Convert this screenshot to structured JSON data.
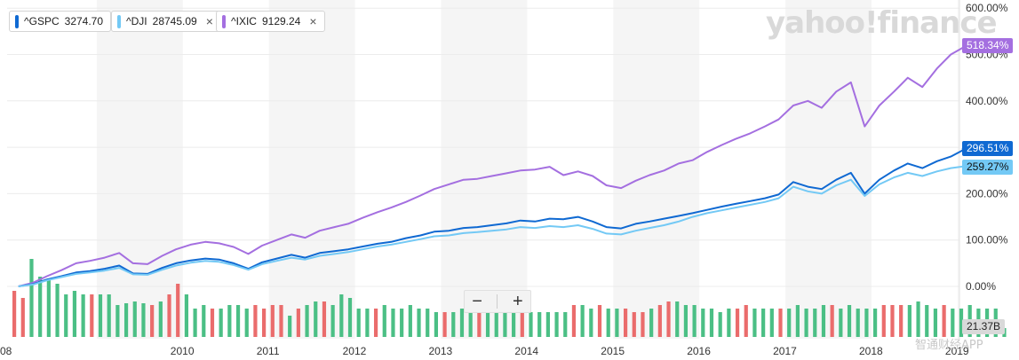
{
  "legend": [
    {
      "symbol": "^GSPC",
      "value": "3274.70",
      "color": "#0f69d2",
      "close": "×"
    },
    {
      "symbol": "^DJI",
      "value": "28745.09",
      "color": "#73c9f5",
      "close": "×"
    },
    {
      "symbol": "^IXIC",
      "value": "9129.24",
      "color": "#a46fe0",
      "close": "×"
    }
  ],
  "watermark": "yahoo!finance",
  "zoom": {
    "minus": "−",
    "plus": "+"
  },
  "end_labels": {
    "ixic": "518.34%",
    "gspc": "296.51%",
    "dji": "259.27%",
    "volume": "21.37B"
  },
  "app_watermark": "智通财经APP",
  "chart_data": {
    "type": "line",
    "y_axis_ticks": [
      "600.00%",
      "500.00%",
      "400.00%",
      "300.00%",
      "200.00%",
      "100.00%",
      "0.00%"
    ],
    "ylim": [
      -5,
      600
    ],
    "x_axis_ticks": [
      "08",
      "2010",
      "2011",
      "2012",
      "2013",
      "2014",
      "2015",
      "2016",
      "2017",
      "2018",
      "2019",
      "202"
    ],
    "grid": true,
    "series": [
      {
        "name": "^IXIC",
        "color": "#a46fe0",
        "x": [
          2009.0,
          2009.17,
          2009.33,
          2009.5,
          2009.67,
          2009.83,
          2010.0,
          2010.17,
          2010.33,
          2010.5,
          2010.67,
          2010.83,
          2011.0,
          2011.17,
          2011.33,
          2011.5,
          2011.67,
          2011.83,
          2012.0,
          2012.17,
          2012.33,
          2012.5,
          2012.67,
          2012.83,
          2013.0,
          2013.17,
          2013.33,
          2013.5,
          2013.67,
          2013.83,
          2014.0,
          2014.17,
          2014.33,
          2014.5,
          2014.67,
          2014.83,
          2015.0,
          2015.17,
          2015.33,
          2015.5,
          2015.67,
          2015.83,
          2016.0,
          2016.17,
          2016.33,
          2016.5,
          2016.67,
          2016.83,
          2017.0,
          2017.17,
          2017.33,
          2017.5,
          2017.67,
          2017.83,
          2018.0,
          2018.17,
          2018.33,
          2018.5,
          2018.67,
          2018.83,
          2019.0,
          2019.17,
          2019.33,
          2019.5,
          2019.67,
          2019.83,
          2020.0
        ],
        "values": [
          0,
          8,
          22,
          35,
          50,
          55,
          62,
          72,
          50,
          48,
          66,
          80,
          90,
          96,
          93,
          85,
          70,
          88,
          100,
          112,
          105,
          120,
          128,
          135,
          148,
          160,
          170,
          182,
          196,
          210,
          220,
          230,
          232,
          238,
          244,
          250,
          252,
          258,
          240,
          248,
          238,
          218,
          212,
          228,
          240,
          250,
          265,
          272,
          290,
          305,
          318,
          330,
          345,
          360,
          390,
          400,
          385,
          420,
          440,
          345,
          390,
          420,
          450,
          430,
          470,
          500,
          518
        ]
      },
      {
        "name": "^GSPC",
        "color": "#0f69d2",
        "x": [
          2009.0,
          2009.17,
          2009.33,
          2009.5,
          2009.67,
          2009.83,
          2010.0,
          2010.17,
          2010.33,
          2010.5,
          2010.67,
          2010.83,
          2011.0,
          2011.17,
          2011.33,
          2011.5,
          2011.67,
          2011.83,
          2012.0,
          2012.17,
          2012.33,
          2012.5,
          2012.67,
          2012.83,
          2013.0,
          2013.17,
          2013.33,
          2013.5,
          2013.67,
          2013.83,
          2014.0,
          2014.17,
          2014.33,
          2014.5,
          2014.67,
          2014.83,
          2015.0,
          2015.17,
          2015.33,
          2015.5,
          2015.67,
          2015.83,
          2016.0,
          2016.17,
          2016.33,
          2016.5,
          2016.67,
          2016.83,
          2017.0,
          2017.17,
          2017.33,
          2017.5,
          2017.67,
          2017.83,
          2018.0,
          2018.17,
          2018.33,
          2018.5,
          2018.67,
          2018.83,
          2019.0,
          2019.17,
          2019.33,
          2019.5,
          2019.67,
          2019.83,
          2020.0
        ],
        "values": [
          0,
          5,
          15,
          22,
          30,
          33,
          38,
          45,
          28,
          27,
          40,
          50,
          56,
          60,
          58,
          50,
          38,
          52,
          60,
          68,
          62,
          72,
          76,
          80,
          86,
          92,
          96,
          104,
          110,
          118,
          120,
          126,
          128,
          132,
          136,
          142,
          140,
          146,
          145,
          150,
          140,
          128,
          125,
          135,
          140,
          146,
          152,
          158,
          165,
          172,
          178,
          184,
          190,
          198,
          225,
          215,
          210,
          230,
          245,
          200,
          230,
          250,
          265,
          255,
          270,
          280,
          296.51
        ]
      },
      {
        "name": "^DJI",
        "color": "#73c9f5",
        "x": [
          2009.0,
          2009.17,
          2009.33,
          2009.5,
          2009.67,
          2009.83,
          2010.0,
          2010.17,
          2010.33,
          2010.5,
          2010.67,
          2010.83,
          2011.0,
          2011.17,
          2011.33,
          2011.5,
          2011.67,
          2011.83,
          2012.0,
          2012.17,
          2012.33,
          2012.5,
          2012.67,
          2012.83,
          2013.0,
          2013.17,
          2013.33,
          2013.5,
          2013.67,
          2013.83,
          2014.0,
          2014.17,
          2014.33,
          2014.5,
          2014.67,
          2014.83,
          2015.0,
          2015.17,
          2015.33,
          2015.5,
          2015.67,
          2015.83,
          2016.0,
          2016.17,
          2016.33,
          2016.5,
          2016.67,
          2016.83,
          2017.0,
          2017.17,
          2017.33,
          2017.5,
          2017.67,
          2017.83,
          2018.0,
          2018.17,
          2018.33,
          2018.5,
          2018.67,
          2018.83,
          2019.0,
          2019.17,
          2019.33,
          2019.5,
          2019.67,
          2019.83,
          2020.0
        ],
        "values": [
          0,
          4,
          13,
          20,
          27,
          30,
          34,
          40,
          26,
          25,
          36,
          45,
          51,
          55,
          53,
          46,
          36,
          48,
          55,
          62,
          58,
          66,
          70,
          74,
          80,
          86,
          90,
          96,
          102,
          108,
          110,
          115,
          117,
          120,
          123,
          128,
          126,
          130,
          128,
          132,
          124,
          114,
          112,
          120,
          126,
          132,
          140,
          150,
          158,
          164,
          170,
          176,
          182,
          190,
          215,
          205,
          200,
          218,
          230,
          195,
          220,
          235,
          245,
          238,
          248,
          255,
          259.27
        ]
      }
    ],
    "volume": {
      "x": [
        2008.5,
        2008.6,
        2008.7,
        2008.8,
        2008.9,
        2009.0,
        2009.1,
        2009.2,
        2009.3,
        2009.4,
        2009.5,
        2009.6,
        2009.7,
        2009.8,
        2009.9,
        2010.0,
        2010.1,
        2010.2,
        2010.3,
        2010.4,
        2010.5,
        2010.6,
        2010.7,
        2010.8,
        2010.9,
        2011.0,
        2011.1,
        2011.2,
        2011.3,
        2011.4,
        2011.5,
        2011.6,
        2011.7,
        2011.8,
        2011.9,
        2012.0,
        2012.1,
        2012.2,
        2012.3,
        2012.4,
        2012.5,
        2012.6,
        2012.7,
        2012.8,
        2012.9,
        2013.0,
        2013.1,
        2013.2,
        2013.3,
        2013.4,
        2013.5,
        2013.6,
        2013.7,
        2013.8,
        2013.9,
        2014.0,
        2014.1,
        2014.2,
        2014.3,
        2014.4,
        2014.5,
        2014.6,
        2014.7,
        2014.8,
        2014.9,
        2015.0,
        2015.1,
        2015.2,
        2015.3,
        2015.4,
        2015.5,
        2015.6,
        2015.7,
        2015.8,
        2015.9,
        2016.0,
        2016.1,
        2016.2,
        2016.3,
        2016.4,
        2016.5,
        2016.6,
        2016.7,
        2016.8,
        2016.9,
        2017.0,
        2017.1,
        2017.2,
        2017.3,
        2017.4,
        2017.5,
        2017.6,
        2017.7,
        2017.8,
        2017.9,
        2018.0,
        2018.1,
        2018.2,
        2018.3,
        2018.4,
        2018.5,
        2018.6,
        2018.7,
        2018.8,
        2018.9,
        2019.0,
        2019.1,
        2019.2,
        2019.3,
        2019.4,
        2019.5,
        2019.6,
        2019.7,
        2019.8,
        2019.9,
        2020.0
      ],
      "up": [
        0,
        0,
        1,
        1,
        1,
        1,
        1,
        1,
        1,
        0,
        1,
        1,
        1,
        1,
        1,
        1,
        0,
        1,
        0,
        0,
        1,
        1,
        1,
        0,
        1,
        1,
        1,
        1,
        0,
        0,
        0,
        0,
        1,
        0,
        1,
        1,
        0,
        1,
        1,
        1,
        1,
        1,
        0,
        1,
        1,
        1,
        1,
        1,
        1,
        1,
        0,
        1,
        1,
        1,
        0,
        1,
        1,
        1,
        1,
        0,
        1,
        1,
        1,
        1,
        1,
        0,
        1,
        1,
        0,
        1,
        1,
        0,
        0,
        0,
        1,
        0,
        0,
        1,
        1,
        1,
        1,
        1,
        1,
        1,
        0,
        0,
        1,
        1,
        1,
        0,
        1,
        1,
        1,
        1,
        1,
        0,
        1,
        1,
        1,
        1,
        1,
        0,
        0,
        0,
        1,
        1,
        1,
        1,
        0,
        1,
        1,
        1,
        1,
        1,
        1,
        1
      ],
      "values": [
        1.3,
        1.1,
        2.2,
        1.7,
        1.6,
        1.5,
        1.2,
        1.3,
        1.2,
        1.2,
        1.2,
        1.2,
        0.9,
        0.95,
        1.0,
        0.95,
        0.9,
        1.0,
        1.2,
        1.5,
        1.2,
        0.8,
        0.9,
        0.8,
        0.8,
        0.9,
        0.9,
        0.8,
        0.9,
        0.8,
        0.9,
        0.9,
        0.6,
        0.8,
        0.9,
        1.0,
        1.0,
        0.9,
        1.2,
        1.1,
        0.8,
        0.8,
        0.8,
        0.9,
        0.8,
        0.8,
        0.9,
        0.8,
        0.8,
        0.7,
        0.7,
        0.7,
        0.8,
        0.7,
        0.8,
        0.7,
        0.7,
        0.7,
        0.8,
        0.7,
        0.7,
        0.7,
        0.7,
        0.7,
        0.7,
        0.9,
        0.9,
        0.8,
        0.9,
        0.8,
        0.8,
        0.8,
        0.7,
        0.7,
        0.8,
        0.9,
        1.0,
        1.0,
        0.9,
        0.9,
        0.8,
        0.8,
        0.7,
        0.8,
        0.8,
        0.9,
        0.8,
        0.8,
        0.8,
        0.8,
        0.8,
        0.9,
        0.8,
        0.8,
        0.9,
        0.9,
        0.8,
        0.9,
        0.8,
        0.8,
        0.8,
        0.9,
        0.9,
        0.9,
        0.9,
        1.0,
        0.9,
        0.8,
        0.9,
        0.8,
        0.8,
        0.9,
        0.8,
        0.8,
        0.8,
        0.25
      ]
    }
  }
}
